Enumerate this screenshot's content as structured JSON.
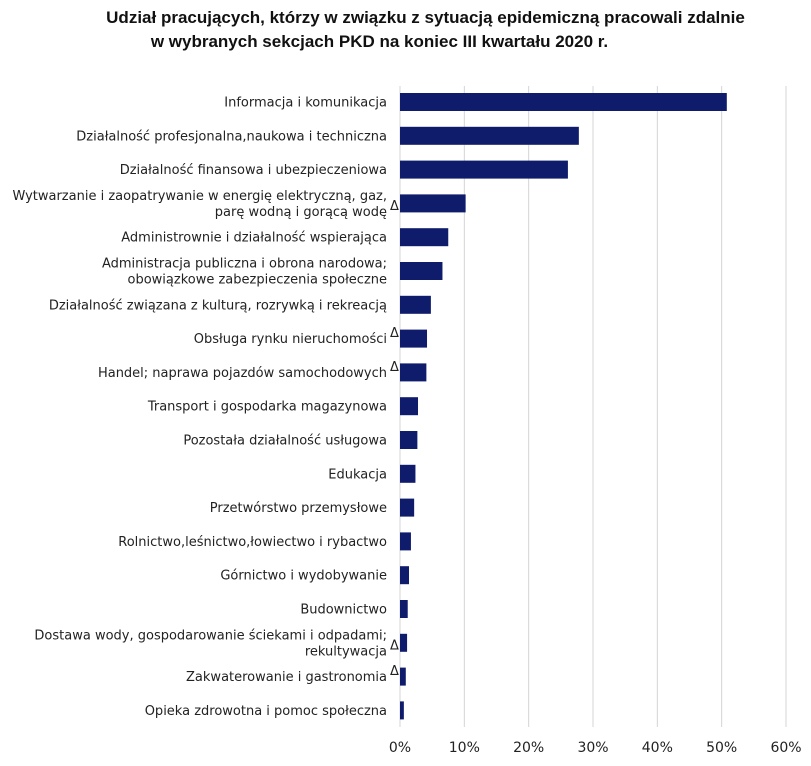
{
  "chart_data": {
    "type": "bar",
    "orientation": "horizontal",
    "title_lines": [
      "Udział pracujących, którzy w związku z sytuacją epidemiczną pracowali zdalnie",
      "w wybranych sekcjach PKD na koniec III kwartału 2020 r."
    ],
    "categories": [
      {
        "lines": [
          "Informacja i komunikacja"
        ],
        "flag": "",
        "value": 50.8
      },
      {
        "lines": [
          "Działalność profesjonalna,naukowa i techniczna"
        ],
        "flag": "",
        "value": 27.8
      },
      {
        "lines": [
          "Działalność finansowa i ubezpieczeniowa"
        ],
        "flag": "",
        "value": 26.1
      },
      {
        "lines": [
          "Wytwarzanie i zaopatrywanie w energię elektryczną, gaz,",
          "parę wodną i gorącą wodę"
        ],
        "flag": "Δ",
        "value": 10.2
      },
      {
        "lines": [
          "Administrownie i działalność wspierająca"
        ],
        "flag": "",
        "value": 7.5
      },
      {
        "lines": [
          "Administracja publiczna i obrona narodowa;",
          "obowiązkowe zabezpieczenia społeczne"
        ],
        "flag": "",
        "value": 6.6
      },
      {
        "lines": [
          "Działalność związana z kulturą, rozrywką i rekreacją"
        ],
        "flag": "",
        "value": 4.8
      },
      {
        "lines": [
          "Obsługa rynku nieruchomości"
        ],
        "flag": "Δ",
        "value": 4.2
      },
      {
        "lines": [
          "Handel; naprawa pojazdów samochodowych"
        ],
        "flag": "Δ",
        "value": 4.1
      },
      {
        "lines": [
          "Transport i gospodarka magazynowa"
        ],
        "flag": "",
        "value": 2.8
      },
      {
        "lines": [
          "Pozostała działalność usługowa"
        ],
        "flag": "",
        "value": 2.7
      },
      {
        "lines": [
          "Edukacja"
        ],
        "flag": "",
        "value": 2.4
      },
      {
        "lines": [
          "Przetwórstwo przemysłowe"
        ],
        "flag": "",
        "value": 2.2
      },
      {
        "lines": [
          "Rolnictwo,leśnictwo,łowiectwo i rybactwo"
        ],
        "flag": "",
        "value": 1.7
      },
      {
        "lines": [
          "Górnictwo i wydobywanie"
        ],
        "flag": "",
        "value": 1.4
      },
      {
        "lines": [
          "Budownictwo"
        ],
        "flag": "",
        "value": 1.2
      },
      {
        "lines": [
          "Dostawa wody, gospodarowanie ściekami i odpadami;",
          "rekultywacja"
        ],
        "flag": "Δ",
        "value": 1.1
      },
      {
        "lines": [
          "Zakwaterowanie i gastronomia"
        ],
        "flag": "Δ",
        "value": 0.9
      },
      {
        "lines": [
          "Opieka zdrowotna i pomoc społeczna"
        ],
        "flag": "",
        "value": 0.6
      }
    ],
    "xlim": [
      0,
      60
    ],
    "xticks": [
      0,
      10,
      20,
      30,
      40,
      50,
      60
    ],
    "tick_suffix": "%",
    "bar_color": "#0e1c6b",
    "grid": true,
    "xlabel": "",
    "ylabel": ""
  }
}
